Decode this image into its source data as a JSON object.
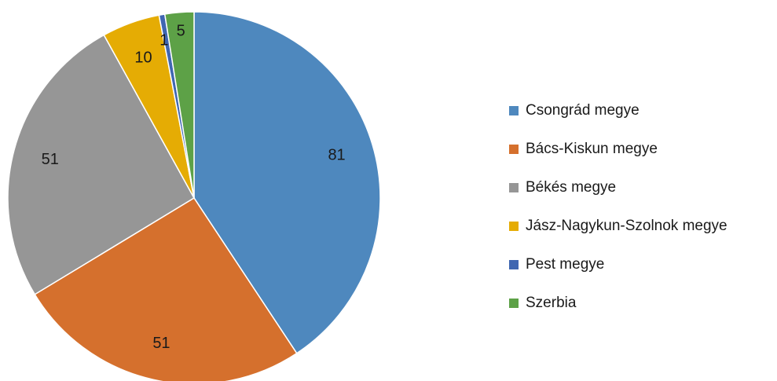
{
  "chart_data": {
    "type": "pie",
    "title": "",
    "start_angle_deg": 0,
    "direction": "clockwise",
    "legend_position": "right",
    "series": [
      {
        "categories": [
          "Csongrád megye",
          "Bács-Kiskun megye",
          "Békés megye",
          "Jász-Nagykun-Szolnok megye",
          "Pest megye",
          "Szerbia"
        ],
        "values": [
          81,
          51,
          51,
          10,
          1,
          5
        ],
        "data_labels": [
          "81",
          "51",
          "51",
          "10",
          "1",
          "5"
        ]
      }
    ],
    "colors": [
      "#4E88BE",
      "#D5702D",
      "#969696",
      "#E5AC04",
      "#3F66B1",
      "#5DA147"
    ]
  }
}
